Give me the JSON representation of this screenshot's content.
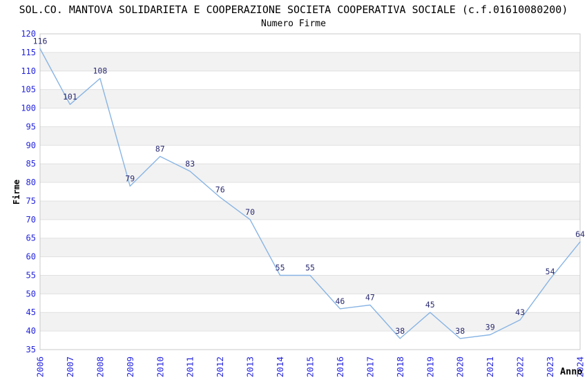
{
  "header": {
    "title": "SOL.CO. MANTOVA SOLIDARIETA E COOPERAZIONE SOCIETA COOPERATIVA SOCIALE (c.f.01610080200)",
    "subtitle": "Numero Firme"
  },
  "chart_data": {
    "type": "line",
    "title": "SOL.CO. MANTOVA SOLIDARIETA E COOPERAZIONE SOCIETA COOPERATIVA SOCIALE (c.f.01610080200)",
    "subtitle": "Numero Firme",
    "categories": [
      "2006",
      "2007",
      "2008",
      "2009",
      "2010",
      "2011",
      "2012",
      "2013",
      "2014",
      "2015",
      "2016",
      "2017",
      "2018",
      "2019",
      "2020",
      "2021",
      "2022",
      "2023",
      "2024"
    ],
    "series": [
      {
        "name": "Numero Firme",
        "values": [
          116,
          101,
          108,
          79,
          87,
          83,
          76,
          70,
          55,
          55,
          46,
          47,
          38,
          45,
          38,
          39,
          43,
          54,
          64
        ]
      }
    ],
    "xlabel": "Anno",
    "ylabel": "Firme",
    "ylim": [
      35,
      120
    ],
    "ytick_step": 5,
    "grid": true,
    "alternating_bands": true,
    "legend_position": "none",
    "point_labels_shown": true,
    "colors": {
      "line": "#88b4e4",
      "tick_label": "#2424dd",
      "point_label": "#2b2b72",
      "band_fill": "#f2f2f2",
      "gridline": "#e0e0e0",
      "plot_border": "#c8c8c8",
      "axis_title": "#000000",
      "title_text": "#000000",
      "background": "#ffffff"
    }
  }
}
